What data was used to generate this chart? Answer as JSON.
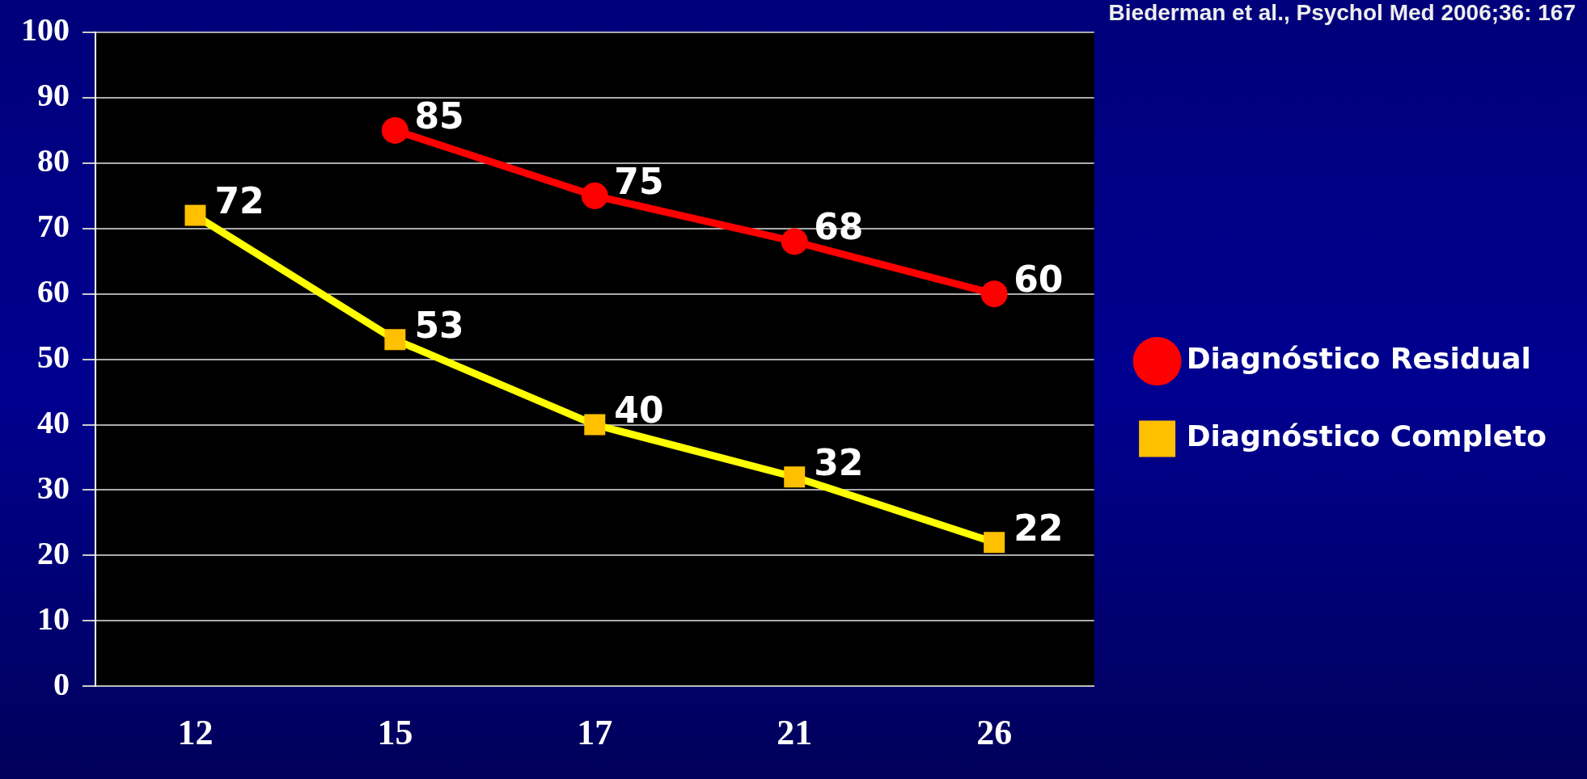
{
  "chart_data": {
    "type": "line",
    "annotations": [
      "Biederman et al., Psychol Med 2006;36: 167"
    ],
    "categories": [
      "12",
      "15",
      "17",
      "21",
      "26"
    ],
    "series": [
      {
        "name": "Diagnóstico Residual",
        "color": "#ff0000",
        "marker": "circle",
        "values": [
          null,
          85,
          75,
          68,
          60
        ]
      },
      {
        "name": "Diagnóstico Completo",
        "color": "#ffff00",
        "marker": "square",
        "values": [
          72,
          53,
          40,
          32,
          22
        ]
      }
    ],
    "ylim": [
      0,
      100
    ],
    "yticks": [
      0,
      10,
      20,
      30,
      40,
      50,
      60,
      70,
      80,
      90,
      100
    ],
    "grid": "y",
    "legend": "right",
    "data_labels": true
  }
}
